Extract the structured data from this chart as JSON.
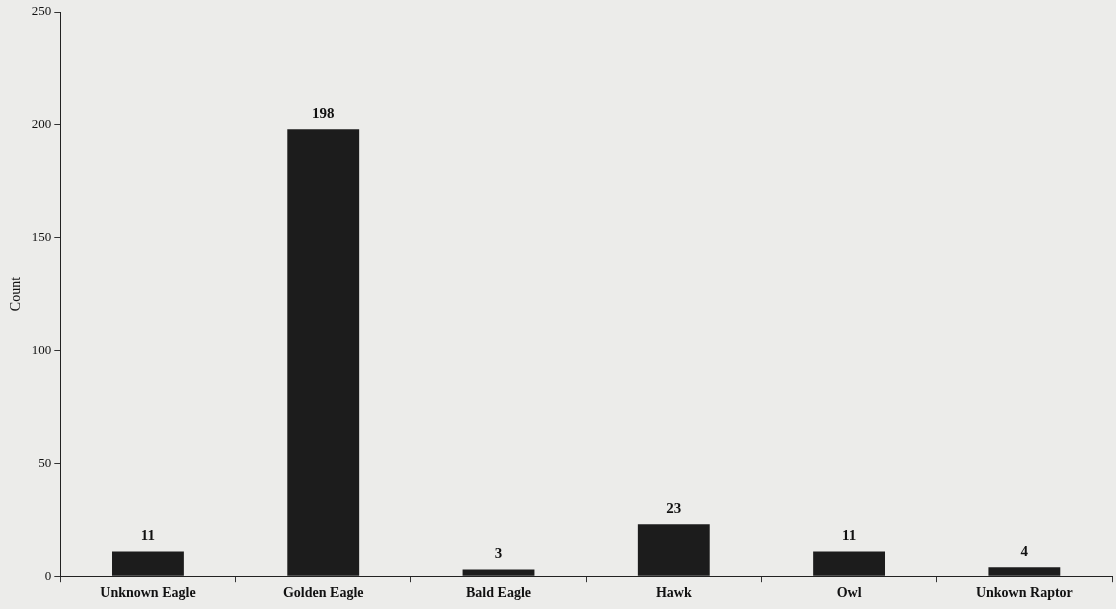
{
  "chart_data": {
    "type": "bar",
    "ylabel": "Count",
    "categories": [
      "Unknown Eagle",
      "Golden Eagle",
      "Bald Eagle",
      "Hawk",
      "Owl",
      "Unkown Raptor"
    ],
    "values": [
      11,
      198,
      3,
      23,
      11,
      4
    ],
    "color": "#1c1c1c",
    "ylim": [
      0,
      250
    ],
    "yticks": [
      0,
      50,
      100,
      150,
      200,
      250
    ],
    "grid": false,
    "legend": false,
    "data_labels": true
  }
}
